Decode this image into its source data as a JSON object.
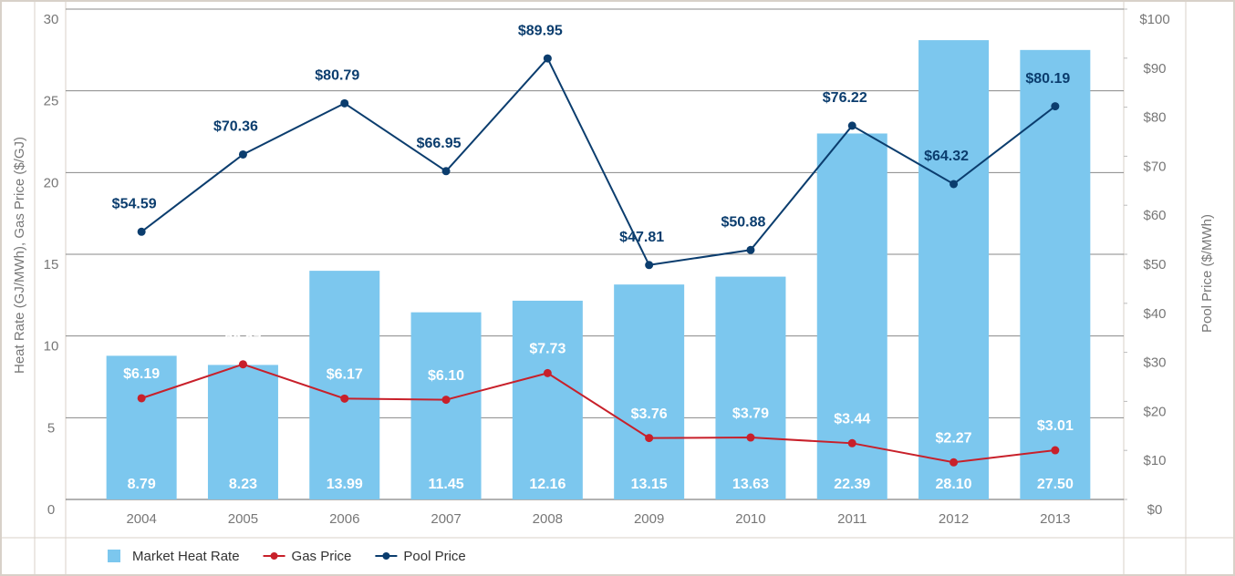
{
  "chart_data": {
    "type": "bar-line",
    "y_label": "Heat Rate (GJ/MWh), Gas Price ($/GJ)",
    "y2_label": "Pool Price ($/MWh)",
    "categories": [
      "2004",
      "2005",
      "2006",
      "2007",
      "2008",
      "2009",
      "2010",
      "2011",
      "2012",
      "2013"
    ],
    "ylim": [
      0,
      30
    ],
    "yticks": [
      0,
      5,
      10,
      15,
      20,
      25,
      30
    ],
    "y2lim": [
      0,
      100
    ],
    "y2ticks": [
      {
        "value": 0,
        "label": "$0"
      },
      {
        "value": 10,
        "label": "$10"
      },
      {
        "value": 20,
        "label": "$20"
      },
      {
        "value": 30,
        "label": "$30"
      },
      {
        "value": 40,
        "label": "$40"
      },
      {
        "value": 50,
        "label": "$50"
      },
      {
        "value": 60,
        "label": "$60"
      },
      {
        "value": 70,
        "label": "$70"
      },
      {
        "value": 80,
        "label": "$80"
      },
      {
        "value": 90,
        "label": "$90"
      },
      {
        "value": 100,
        "label": "$100"
      }
    ],
    "grid": true,
    "series": [
      {
        "name": "Market Heat Rate",
        "kind": "bar",
        "color": "#7cc7ee",
        "values": [
          8.79,
          8.23,
          13.99,
          11.45,
          12.16,
          13.15,
          13.63,
          22.39,
          28.1,
          27.5
        ],
        "value_labels": [
          "8.79",
          "8.23",
          "13.99",
          "11.45",
          "12.16",
          "13.15",
          "13.63",
          "22.39",
          "28.10",
          "27.50"
        ]
      },
      {
        "name": "Gas Price",
        "kind": "line",
        "color": "#c8202a",
        "values": [
          6.19,
          8.27,
          6.17,
          6.1,
          7.73,
          3.76,
          3.79,
          3.44,
          2.27,
          3.01
        ],
        "value_labels": [
          "$6.19",
          "$8.27",
          "$6.17",
          "$6.10",
          "$7.73",
          "$3.76",
          "$3.79",
          "$3.44",
          "$2.27",
          "$3.01"
        ]
      },
      {
        "name": "Pool Price",
        "kind": "line",
        "axis": "y2",
        "color": "#0b3d6e",
        "values": [
          54.59,
          70.36,
          80.79,
          66.95,
          89.95,
          47.81,
          50.88,
          76.22,
          64.32,
          80.19
        ],
        "value_labels": [
          "$54.59",
          "$70.36",
          "$80.79",
          "$66.95",
          "$89.95",
          "$47.81",
          "$50.88",
          "$76.22",
          "$64.32",
          "$80.19"
        ]
      }
    ]
  }
}
